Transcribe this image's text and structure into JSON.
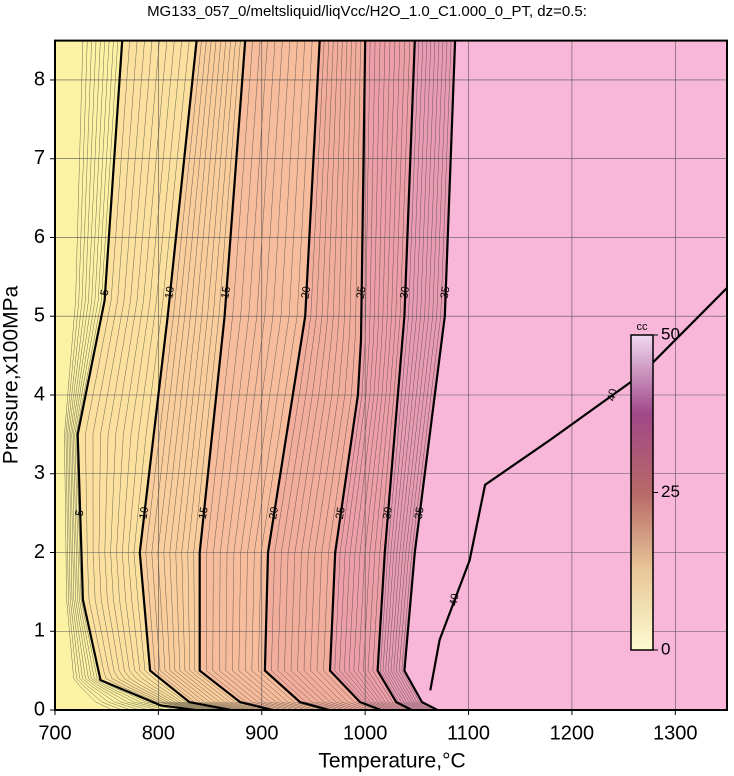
{
  "chart_data": {
    "type": "contour",
    "title": "MG133_057_0/meltsliquid/liqVcc/H2O_1.0_C1.000_0_PT, dz=0.5:",
    "x_label": "Temperature,°C",
    "y_label": "Pressure,x100MPa",
    "xlim": [
      700,
      1350
    ],
    "ylim": [
      0,
      8.5
    ],
    "xticks": [
      700,
      800,
      900,
      1000,
      1100,
      1200,
      1300
    ],
    "yticks": [
      0,
      1,
      2,
      3,
      4,
      5,
      6,
      7,
      8
    ],
    "grid": true,
    "band_colors": [
      "#fdf2a4",
      "#fbe09e",
      "#f9cd9c",
      "#f6bc9b",
      "#f2ad9d",
      "#ec9fa6",
      "#e89cb4",
      "#f8b6d8"
    ],
    "contours": [
      {
        "level": 5,
        "x": [
          765,
          748,
          722,
          727,
          744,
          802,
          835
        ],
        "y": [
          8.5,
          5.2,
          3.5,
          1.4,
          0.38,
          0.06,
          0
        ]
      },
      {
        "level": 10,
        "x": [
          837,
          809,
          782,
          792,
          830,
          870
        ],
        "y": [
          8.5,
          5,
          2,
          0.5,
          0.1,
          0
        ]
      },
      {
        "level": 15,
        "x": [
          884,
          864,
          840,
          840,
          879,
          910
        ],
        "y": [
          8.5,
          5,
          2,
          0.5,
          0.1,
          0
        ]
      },
      {
        "level": 20,
        "x": [
          956,
          942,
          906,
          903,
          937,
          965
        ],
        "y": [
          8.5,
          5,
          2,
          0.5,
          0.1,
          0
        ]
      },
      {
        "level": 25,
        "x": [
          1000,
          996,
          993,
          971,
          966,
          995,
          1015
        ],
        "y": [
          8.5,
          4.7,
          4,
          2,
          0.5,
          0.1,
          0
        ]
      },
      {
        "level": 30,
        "x": [
          1048,
          1038,
          1019,
          1012,
          1030,
          1045
        ],
        "y": [
          8.5,
          5,
          2,
          0.5,
          0.1,
          0
        ]
      },
      {
        "level": 35,
        "x": [
          1087,
          1077,
          1048,
          1038,
          1055,
          1070
        ],
        "y": [
          8.5,
          5,
          2,
          0.5,
          0.1,
          0
        ]
      },
      {
        "level": 40,
        "x": [
          1063,
          1072,
          1101,
          1116,
          1179,
          1266,
          1350
        ],
        "y": [
          0.25,
          0.89,
          1.9,
          2.86,
          3.43,
          4.25,
          5.36
        ]
      }
    ],
    "colorbar": {
      "label": "cc",
      "lim": [
        0,
        50
      ],
      "ticks": [
        0,
        25,
        50
      ],
      "colors": [
        "#fefbd0",
        "#e8c898",
        "#b86868",
        "#a04888",
        "#f0d8f0"
      ]
    }
  }
}
